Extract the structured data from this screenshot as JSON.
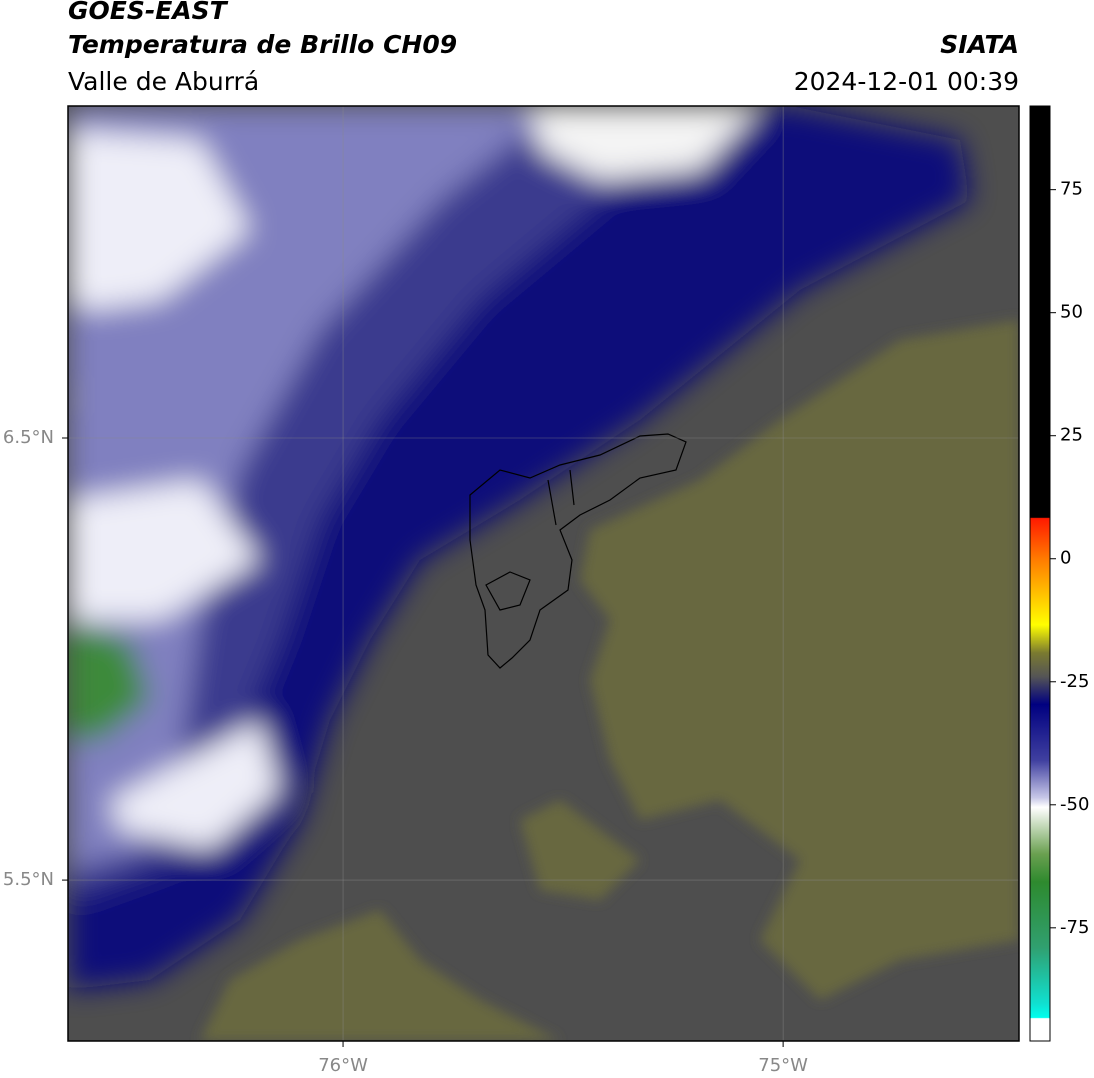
{
  "header": {
    "title": "GOES-EAST",
    "subtitle": "Temperatura de Brillo CH09",
    "region": "Valle de Aburrá",
    "org": "SIATA",
    "datetime": "2024-12-01 00:39"
  },
  "map": {
    "xlim": [
      -76.625,
      -74.464
    ],
    "ylim": [
      5.136,
      7.251
    ],
    "xticks": [
      {
        "value": -76,
        "label": "76°W"
      },
      {
        "value": -75,
        "label": "75°W"
      }
    ],
    "yticks": [
      {
        "value": 6.5,
        "label": "6.5°N"
      },
      {
        "value": 5.5,
        "label": "5.5°N"
      }
    ],
    "grid": true
  },
  "colorbar": {
    "lim": [
      -98,
      92
    ],
    "ticks": [
      75,
      50,
      25,
      0,
      -25,
      -50,
      -75
    ]
  }
}
